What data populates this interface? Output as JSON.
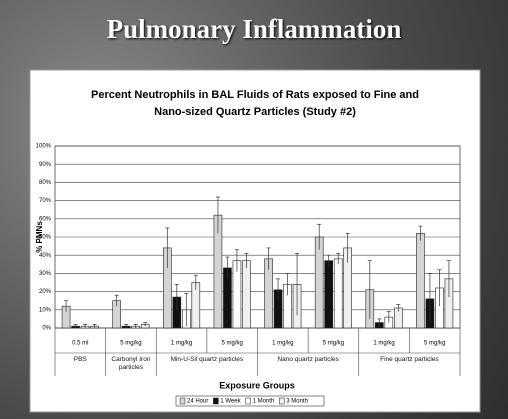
{
  "header": {
    "title": "Pulmonary Inflammation"
  },
  "chart_data": {
    "type": "bar",
    "title": [
      "Percent Neutrophils in BAL Fluids of Rats exposed to Fine and",
      "Nano-sized Quartz Particles (Study #2)"
    ],
    "x_label": "Exposure Groups",
    "y_label": "% PMNs",
    "groups": [
      {
        "name": "PBS",
        "categories": [
          "0.5 ml"
        ]
      },
      {
        "name": "Carbonyl Iron particles",
        "categories": [
          "5 mg/kg"
        ]
      },
      {
        "name": "Min-U-Sil quartz particles",
        "categories": [
          "1 mg/kg",
          "5 mg/kg"
        ]
      },
      {
        "name": "Nano quartz particles",
        "categories": [
          "1 mg/kg",
          "5 mg/kg"
        ]
      },
      {
        "name": "Fine quartz particles",
        "categories": [
          "1 mg/kg",
          "5 mg/kg"
        ]
      }
    ],
    "series": [
      {
        "name": "24 Hour",
        "color": "#d4d4d4",
        "values": [
          12,
          15,
          44,
          62,
          38,
          50,
          21,
          52
        ],
        "errors": [
          3,
          3,
          11,
          10,
          6,
          7,
          16,
          4
        ]
      },
      {
        "name": "1 Week",
        "color": "#111111",
        "values": [
          1,
          1,
          17,
          33,
          21,
          37,
          3,
          16
        ],
        "errors": [
          1,
          1,
          7,
          6,
          6,
          3,
          2,
          14
        ]
      },
      {
        "name": "1 Month",
        "color": "#ffffff",
        "values": [
          1,
          1,
          10,
          37,
          24,
          38,
          6,
          22
        ],
        "errors": [
          1,
          1,
          9,
          6,
          6,
          3,
          3,
          10
        ]
      },
      {
        "name": "3 Month",
        "color": "#efefef",
        "values": [
          1,
          2,
          25,
          37,
          24,
          44,
          11,
          27
        ],
        "errors": [
          1,
          1,
          4,
          4,
          17,
          8,
          2,
          10
        ]
      }
    ],
    "ylim": [
      0,
      100
    ],
    "yticks": [
      {
        "value": 0,
        "label": "0%"
      },
      {
        "value": 10,
        "label": "10%"
      },
      {
        "value": 20,
        "label": "20%"
      },
      {
        "value": 30,
        "label": "30%"
      },
      {
        "value": 40,
        "label": "40%"
      },
      {
        "value": 50,
        "label": "50%"
      },
      {
        "value": 60,
        "label": "60%"
      },
      {
        "value": 70,
        "label": "70%"
      },
      {
        "value": 80,
        "label": "80%"
      },
      {
        "value": 90,
        "label": "90%"
      },
      {
        "value": 100,
        "label": "100%"
      }
    ],
    "grid": true
  }
}
